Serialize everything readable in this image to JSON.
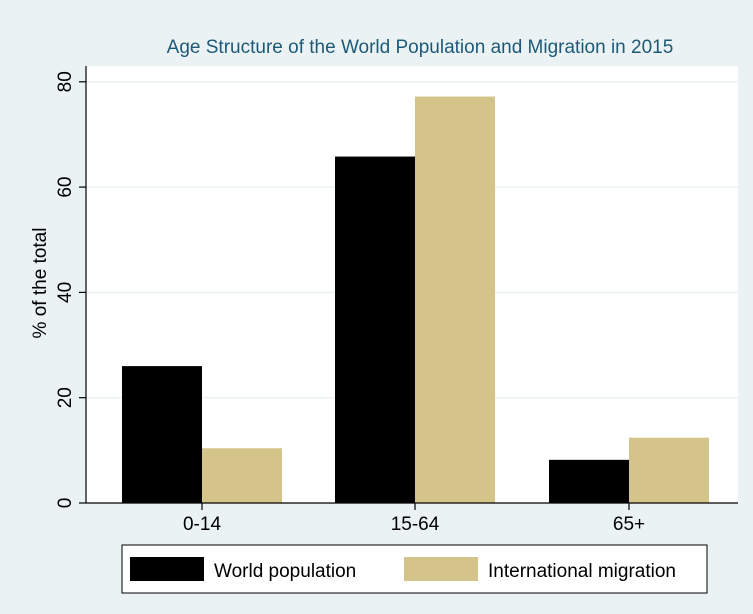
{
  "chart_data": {
    "type": "bar",
    "title": "Age Structure of the World Population and Migration in 2015",
    "xlabel": "",
    "ylabel": "% of the total",
    "categories": [
      "0-14",
      "15-64",
      "65+"
    ],
    "series": [
      {
        "name": "World population",
        "values": [
          26,
          65.8,
          8.2
        ],
        "color": "#000000"
      },
      {
        "name": "International migration",
        "values": [
          10.4,
          77.2,
          12.4
        ],
        "color": "#d4c48a"
      }
    ],
    "ylim": [
      0,
      83
    ],
    "yticks": [
      0,
      20,
      40,
      60,
      80
    ],
    "ytick_labels": [
      "0",
      "20",
      "40",
      "60",
      "80"
    ],
    "grid": true,
    "legend_position": "bottom",
    "background_color": "#eaf2f3",
    "plot_background_color": "#ffffff",
    "grid_color": "#eaf2f3",
    "title_color": "#1e5a78"
  }
}
